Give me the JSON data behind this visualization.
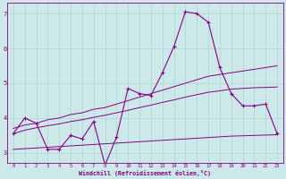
{
  "xlabel": "Windchill (Refroidissement éolien,°C)",
  "ylabel": "",
  "bg_color": "#cce8e8",
  "line_color": "#880088",
  "grid_color": "#aad4d4",
  "xlim": [
    -0.5,
    23.5
  ],
  "ylim": [
    2.7,
    7.3
  ],
  "xticks": [
    0,
    1,
    2,
    3,
    4,
    5,
    6,
    7,
    8,
    9,
    10,
    11,
    12,
    13,
    14,
    15,
    16,
    17,
    18,
    19,
    20,
    21,
    22,
    23
  ],
  "yticks": [
    3,
    4,
    5,
    6,
    7
  ],
  "main_data": [
    3.55,
    4.0,
    3.85,
    3.1,
    3.1,
    3.5,
    3.4,
    3.9,
    2.65,
    3.45,
    4.85,
    4.7,
    4.65,
    5.3,
    6.05,
    7.05,
    7.0,
    6.75,
    5.45,
    4.7,
    4.35,
    4.35,
    4.4,
    3.55
  ],
  "upper_line": [
    3.7,
    3.8,
    3.85,
    3.95,
    4.0,
    4.1,
    4.15,
    4.25,
    4.3,
    4.4,
    4.5,
    4.6,
    4.7,
    4.8,
    4.9,
    5.0,
    5.1,
    5.2,
    5.25,
    5.3,
    5.35,
    5.4,
    5.45,
    5.5
  ],
  "mean_line": [
    3.55,
    3.65,
    3.72,
    3.78,
    3.83,
    3.9,
    3.95,
    4.02,
    4.08,
    4.15,
    4.22,
    4.3,
    4.37,
    4.45,
    4.52,
    4.6,
    4.67,
    4.74,
    4.78,
    4.83,
    4.85,
    4.87,
    4.88,
    4.89
  ],
  "lower_line": [
    3.1,
    3.12,
    3.14,
    3.16,
    3.18,
    3.2,
    3.22,
    3.24,
    3.26,
    3.28,
    3.3,
    3.32,
    3.34,
    3.36,
    3.38,
    3.4,
    3.42,
    3.44,
    3.46,
    3.48,
    3.49,
    3.5,
    3.51,
    3.52
  ]
}
